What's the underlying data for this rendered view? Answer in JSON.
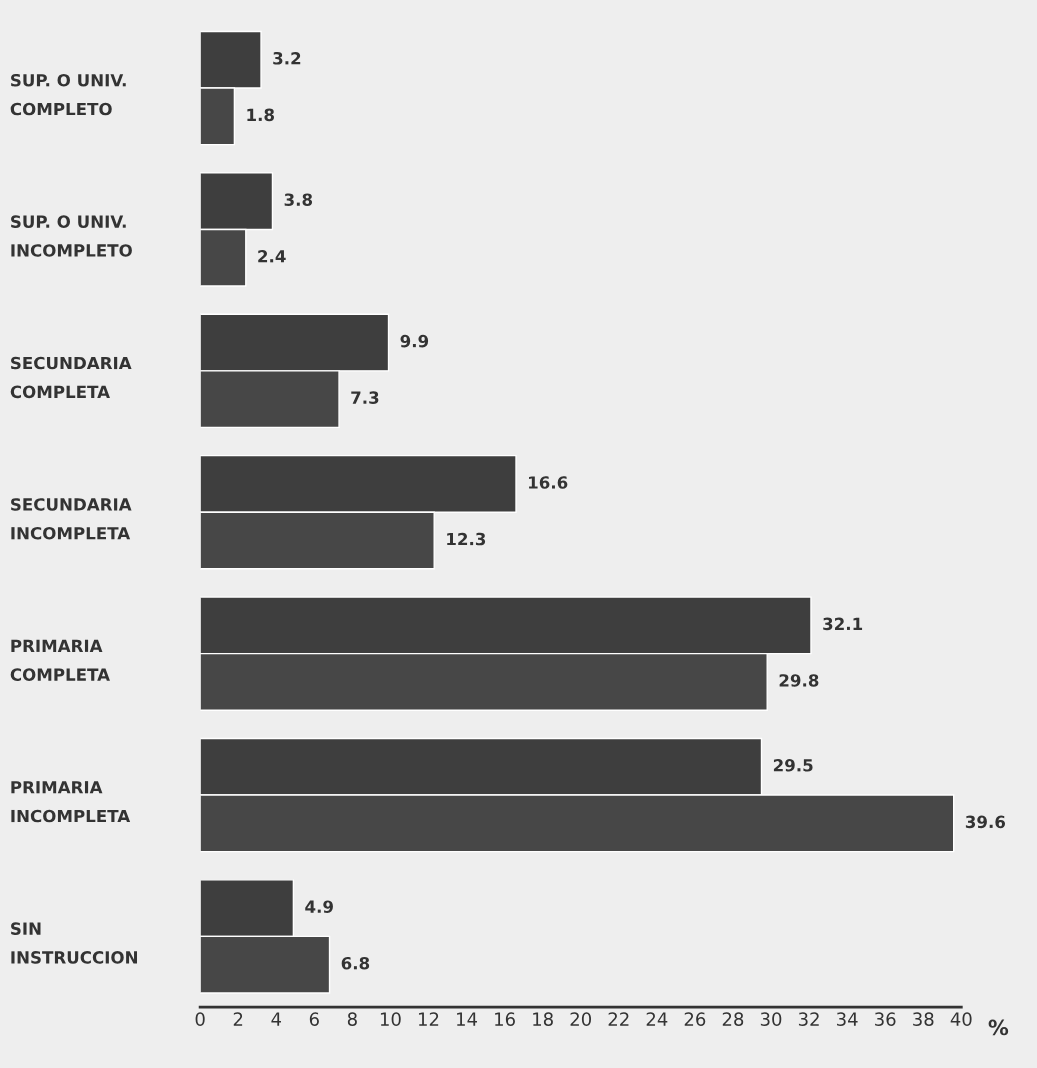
{
  "chart_data": {
    "type": "bar",
    "orientation": "horizontal",
    "xlabel": "%",
    "categories": [
      "SUP. O UNIV.\nCOMPLETO",
      "SUP. O UNIV.\nINCOMPLETO",
      "SECUNDARIA\nCOMPLETA",
      "SECUNDARIA\nINCOMPLETA",
      "PRIMARIA\nCOMPLETA",
      "PRIMARIA\nINCOMPLETA",
      "SIN\nINSTRUCCION"
    ],
    "series": [
      {
        "color": "#3e3e3e",
        "values": [
          3.2,
          3.8,
          9.9,
          16.6,
          32.1,
          29.5,
          4.9
        ]
      },
      {
        "color": "#474747",
        "values": [
          1.8,
          2.4,
          7.3,
          12.3,
          29.8,
          39.6,
          6.8
        ]
      }
    ],
    "xlim": [
      0,
      40
    ],
    "xticks": [
      0,
      2,
      4,
      6,
      8,
      10,
      12,
      14,
      16,
      18,
      20,
      22,
      24,
      26,
      28,
      30,
      32,
      34,
      36,
      38,
      40
    ],
    "data_labels": true,
    "grid": false,
    "legend": false
  }
}
